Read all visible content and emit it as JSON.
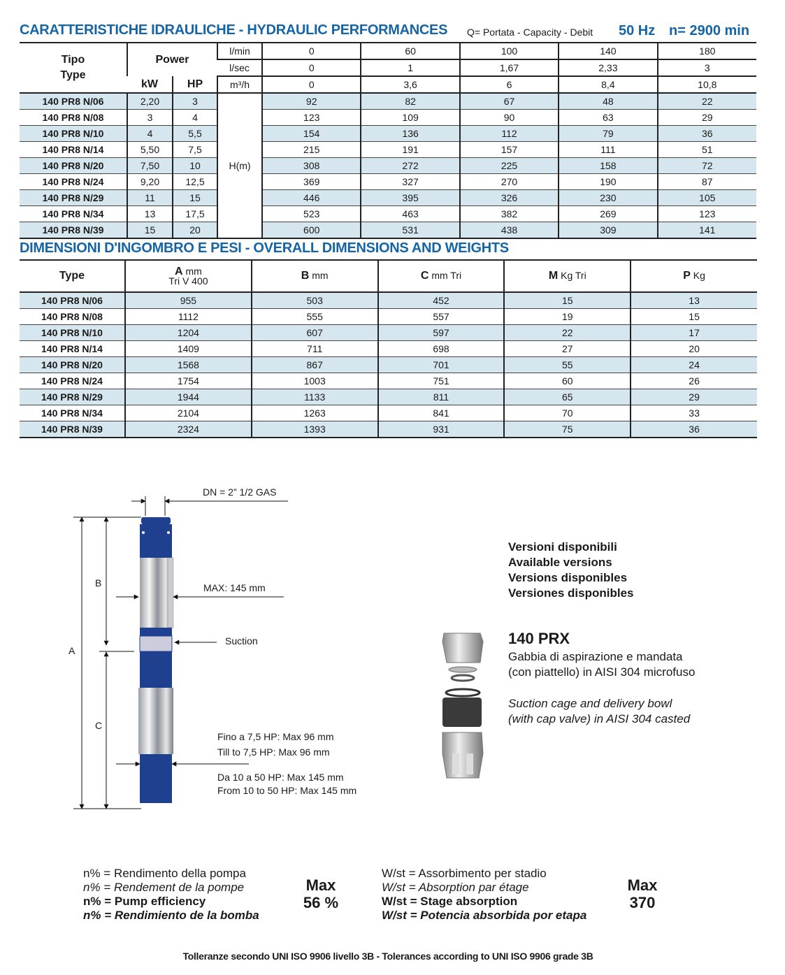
{
  "header": {
    "title": "CARATTERISTICHE IDRAULICHE - HYDRAULIC PERFORMANCES",
    "capacity_note": "Q= Portata - Capacity - Debit",
    "frequency": "50 Hz",
    "speed": "n= 2900 min"
  },
  "performance": {
    "type_label_1": "Tipo",
    "type_label_2": "Type",
    "power_label": "Power",
    "kw_label": "kW",
    "hp_label": "HP",
    "flow_units": [
      "l/min",
      "l/sec",
      "m³/h"
    ],
    "flow_values": [
      [
        "0",
        "60",
        "100",
        "140",
        "180"
      ],
      [
        "0",
        "1",
        "1,67",
        "2,33",
        "3"
      ],
      [
        "0",
        "3,6",
        "6",
        "8,4",
        "10,8"
      ]
    ],
    "head_label": "H(m)",
    "rows": [
      {
        "type": "140 PR8 N/06",
        "kw": "2,20",
        "hp": "3",
        "h": [
          "92",
          "82",
          "67",
          "48",
          "22"
        ]
      },
      {
        "type": "140 PR8 N/08",
        "kw": "3",
        "hp": "4",
        "h": [
          "123",
          "109",
          "90",
          "63",
          "29"
        ]
      },
      {
        "type": "140 PR8 N/10",
        "kw": "4",
        "hp": "5,5",
        "h": [
          "154",
          "136",
          "112",
          "79",
          "36"
        ]
      },
      {
        "type": "140 PR8 N/14",
        "kw": "5,50",
        "hp": "7,5",
        "h": [
          "215",
          "191",
          "157",
          "111",
          "51"
        ]
      },
      {
        "type": "140 PR8 N/20",
        "kw": "7,50",
        "hp": "10",
        "h": [
          "308",
          "272",
          "225",
          "158",
          "72"
        ]
      },
      {
        "type": "140 PR8 N/24",
        "kw": "9,20",
        "hp": "12,5",
        "h": [
          "369",
          "327",
          "270",
          "190",
          "87"
        ]
      },
      {
        "type": "140 PR8 N/29",
        "kw": "11",
        "hp": "15",
        "h": [
          "446",
          "395",
          "326",
          "230",
          "105"
        ]
      },
      {
        "type": "140 PR8 N/34",
        "kw": "13",
        "hp": "17,5",
        "h": [
          "523",
          "463",
          "382",
          "269",
          "123"
        ]
      },
      {
        "type": "140 PR8 N/39",
        "kw": "15",
        "hp": "20",
        "h": [
          "600",
          "531",
          "438",
          "309",
          "141"
        ]
      }
    ]
  },
  "dimensions": {
    "title": "DIMENSIONI D'INGOMBRO E PESI - OVERALL DIMENSIONS AND WEIGHTS",
    "headers": [
      {
        "main": "Type",
        "unit": "",
        "sub": ""
      },
      {
        "main": "A",
        "unit": " mm",
        "sub": "Tri V 400"
      },
      {
        "main": "B",
        "unit": " mm",
        "sub": ""
      },
      {
        "main": "C",
        "unit": " mm Tri",
        "sub": ""
      },
      {
        "main": "M",
        "unit": " Kg Tri",
        "sub": ""
      },
      {
        "main": "P",
        "unit": " Kg",
        "sub": ""
      }
    ],
    "rows": [
      [
        "140 PR8 N/06",
        "955",
        "503",
        "452",
        "15",
        "13"
      ],
      [
        "140 PR8 N/08",
        "1112",
        "555",
        "557",
        "19",
        "15"
      ],
      [
        "140 PR8 N/10",
        "1204",
        "607",
        "597",
        "22",
        "17"
      ],
      [
        "140 PR8 N/14",
        "1409",
        "711",
        "698",
        "27",
        "20"
      ],
      [
        "140 PR8 N/20",
        "1568",
        "867",
        "701",
        "55",
        "24"
      ],
      [
        "140 PR8 N/24",
        "1754",
        "1003",
        "751",
        "60",
        "26"
      ],
      [
        "140 PR8 N/29",
        "1944",
        "1133",
        "811",
        "65",
        "29"
      ],
      [
        "140 PR8 N/34",
        "2104",
        "1263",
        "841",
        "70",
        "33"
      ],
      [
        "140 PR8 N/39",
        "2324",
        "1393",
        "931",
        "75",
        "36"
      ]
    ]
  },
  "drawing": {
    "dn": "DN = 2” 1/2 GAS",
    "max_diameter": "MAX: 145 mm",
    "suction": "Suction",
    "label_a": "A",
    "label_b": "B",
    "label_c": "C",
    "motor_note_1": "Fino a 7,5 HP: Max 96 mm",
    "motor_note_2": "Till to 7,5 HP: Max 96 mm",
    "motor_note_3": "Da 10 a 50 HP: Max 145 mm",
    "motor_note_4": "From 10 to 50 HP: Max 145 mm",
    "pump_color": "#1f3f8f"
  },
  "versions": {
    "lines": [
      "Versioni disponibili",
      "Available versions",
      "Versions disponibles",
      "Versiones disponibles"
    ],
    "model": "140 PRX",
    "desc_it_1": "Gabbia di aspirazione e mandata",
    "desc_it_2": "(con piattello) in AISI 304 microfuso",
    "desc_en_1": "Suction cage and delivery bowl",
    "desc_en_2": "(with cap valve) in AISI 304 casted"
  },
  "efficiency": {
    "lines": [
      "n% = Rendimento della pompa",
      "n% = Rendement de la pompe",
      "n% = Pump efficiency",
      "n% = Rendimiento de la bomba"
    ],
    "max_label": "Max",
    "max_value": "56 %"
  },
  "absorption": {
    "lines": [
      "W/st = Assorbimento per stadio",
      "W/st = Absorption par étage",
      "W/st = Stage absorption",
      "W/st = Potencia absorbida por etapa"
    ],
    "max_label": "Max",
    "max_value": "370"
  },
  "footer": "Tolleranze secondo UNI ISO 9906 livello 3B - Tolerances according to UNI ISO 9906 grade 3B",
  "colors": {
    "accent": "#1565a6",
    "row_highlight": "#d5e6ee"
  }
}
